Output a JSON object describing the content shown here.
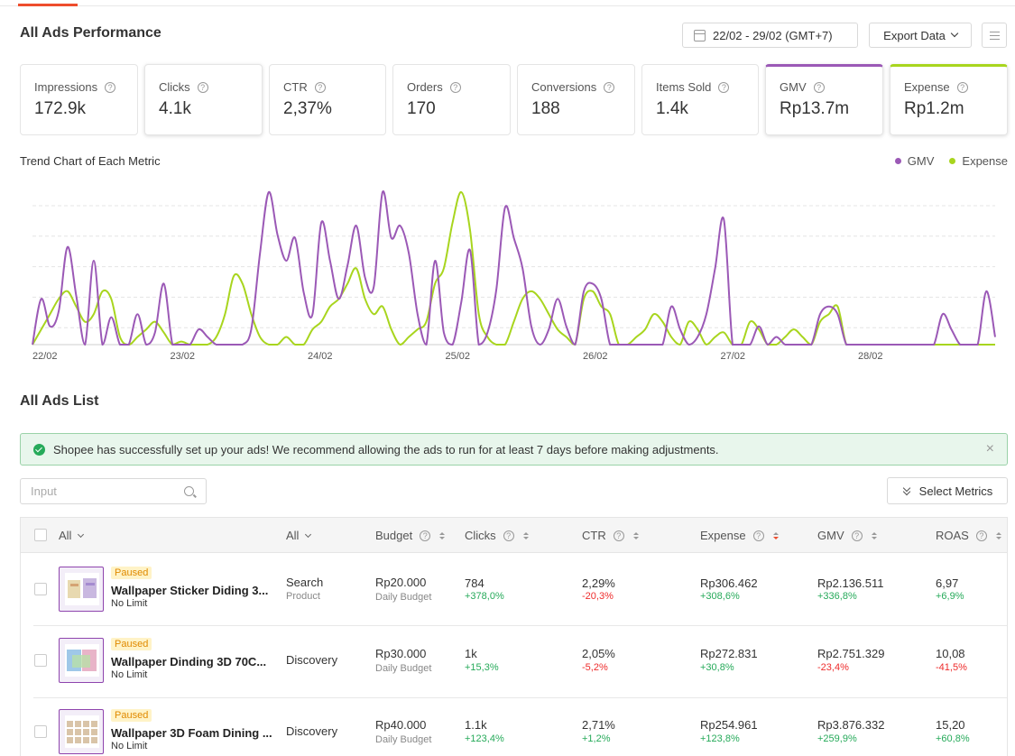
{
  "header": {
    "title": "All Ads Performance",
    "date_range": "22/02 - 29/02 (GMT+7)",
    "export_label": "Export Data"
  },
  "metrics": [
    {
      "label": "Impressions",
      "value": "172.9k"
    },
    {
      "label": "Clicks",
      "value": "4.1k"
    },
    {
      "label": "CTR",
      "value": "2,37%"
    },
    {
      "label": "Orders",
      "value": "170"
    },
    {
      "label": "Conversions",
      "value": "188"
    },
    {
      "label": "Items Sold",
      "value": "1.4k"
    },
    {
      "label": "GMV",
      "value": "Rp13.7m"
    },
    {
      "label": "Expense",
      "value": "Rp1.2m"
    }
  ],
  "trend": {
    "title": "Trend Chart of Each Metric",
    "legend": [
      {
        "name": "GMV",
        "color": "#9b59b6"
      },
      {
        "name": "Expense",
        "color": "#a8d51e"
      }
    ]
  },
  "chart_data": {
    "type": "line",
    "x_labels": [
      "22/02",
      "23/02",
      "24/02",
      "25/02",
      "26/02",
      "27/02",
      "28/02"
    ],
    "ylim": [
      0,
      100
    ],
    "grid": true,
    "series": [
      {
        "name": "GMV",
        "color": "#9b59b6",
        "values": [
          0,
          30,
          12,
          22,
          64,
          32,
          0,
          55,
          0,
          18,
          0,
          0,
          20,
          0,
          8,
          40,
          0,
          0,
          0,
          10,
          5,
          0,
          0,
          0,
          0,
          10,
          60,
          100,
          72,
          55,
          70,
          34,
          20,
          80,
          55,
          30,
          52,
          78,
          44,
          38,
          100,
          70,
          78,
          60,
          20,
          0,
          55,
          8,
          0,
          28,
          62,
          0,
          8,
          36,
          90,
          70,
          50,
          12,
          0,
          10,
          30,
          12,
          0,
          35,
          40,
          30,
          0,
          0,
          0,
          0,
          0,
          0,
          0,
          25,
          10,
          0,
          5,
          20,
          50,
          82,
          0,
          0,
          0,
          12,
          0,
          5,
          0,
          0,
          0,
          0,
          20,
          25,
          20,
          0,
          0,
          0,
          0,
          0,
          0,
          0,
          0,
          0,
          0,
          0,
          20,
          10,
          0,
          0,
          0,
          35,
          5
        ]
      },
      {
        "name": "Expense",
        "color": "#a8d51e",
        "values": [
          0,
          10,
          20,
          30,
          35,
          25,
          15,
          20,
          35,
          30,
          5,
          0,
          5,
          10,
          15,
          8,
          0,
          2,
          0,
          0,
          0,
          5,
          20,
          45,
          40,
          20,
          5,
          0,
          0,
          5,
          0,
          0,
          10,
          15,
          25,
          30,
          40,
          50,
          30,
          20,
          25,
          10,
          0,
          5,
          10,
          15,
          40,
          50,
          80,
          100,
          75,
          20,
          5,
          0,
          0,
          15,
          30,
          35,
          30,
          20,
          10,
          5,
          0,
          30,
          35,
          25,
          20,
          0,
          0,
          5,
          10,
          20,
          15,
          5,
          0,
          15,
          10,
          0,
          5,
          8,
          0,
          0,
          15,
          10,
          0,
          0,
          5,
          10,
          5,
          0,
          15,
          20,
          25,
          0,
          0,
          0,
          0,
          0,
          0,
          0,
          0,
          0,
          0,
          0,
          0,
          0,
          0,
          0,
          0,
          0,
          0
        ]
      }
    ]
  },
  "list": {
    "title": "All Ads List",
    "banner": "Shopee has successfully set up your ads! We recommend allowing the ads to run for at least 7 days before making adjustments.",
    "search_placeholder": "Input",
    "select_metrics_label": "Select Metrics",
    "columns": {
      "all_ads": "All",
      "all_type": "All",
      "budget": "Budget",
      "clicks": "Clicks",
      "ctr": "CTR",
      "expense": "Expense",
      "gmv": "GMV",
      "roas": "ROAS"
    },
    "rows": [
      {
        "status": "Paused",
        "name": "Wallpaper Sticker Diding 3...",
        "limit": "No Limit",
        "type": "Search",
        "type_sub": "Product",
        "budget": "Rp20.000",
        "budget_sub": "Daily Budget",
        "clicks": "784",
        "clicks_delta": "+378,0%",
        "ctr": "2,29%",
        "ctr_delta": "-20,3%",
        "expense": "Rp306.462",
        "expense_delta": "+308,6%",
        "gmv": "Rp2.136.511",
        "gmv_delta": "+336,8%",
        "roas": "6,97",
        "roas_delta": "+6,9%"
      },
      {
        "status": "Paused",
        "name": "Wallpaper Dinding 3D 70C...",
        "limit": "No Limit",
        "type": "Discovery",
        "type_sub": "",
        "budget": "Rp30.000",
        "budget_sub": "Daily Budget",
        "clicks": "1k",
        "clicks_delta": "+15,3%",
        "ctr": "2,05%",
        "ctr_delta": "-5,2%",
        "expense": "Rp272.831",
        "expense_delta": "+30,8%",
        "gmv": "Rp2.751.329",
        "gmv_delta": "-23,4%",
        "roas": "10,08",
        "roas_delta": "-41,5%"
      },
      {
        "status": "Paused",
        "name": "Wallpaper 3D Foam Dining ...",
        "limit": "No Limit",
        "type": "Discovery",
        "type_sub": "",
        "budget": "Rp40.000",
        "budget_sub": "Daily Budget",
        "clicks": "1.1k",
        "clicks_delta": "+123,4%",
        "ctr": "2,71%",
        "ctr_delta": "+1,2%",
        "expense": "Rp254.961",
        "expense_delta": "+123,8%",
        "gmv": "Rp3.876.332",
        "gmv_delta": "+259,9%",
        "roas": "15,20",
        "roas_delta": "+60,8%"
      }
    ]
  }
}
